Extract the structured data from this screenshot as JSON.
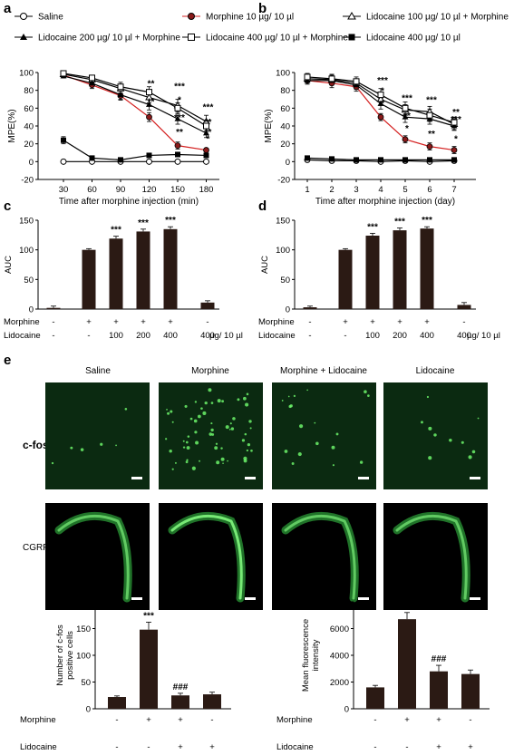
{
  "legend": {
    "saline": "Saline",
    "morphine": "Morphine 10 µg/ 10 µl",
    "lido100": "Lidocaine 100 µg/ 10 µl + Morphine",
    "lido200": "Lidocaine  200 µg/ 10 µl + Morphine",
    "lido400m": "Lidocaine 400 µg/ 10 µl + Morphine",
    "lido400": "Lidocaine 400 µg/ 10 µl"
  },
  "panels": {
    "a": "a",
    "b": "b",
    "c": "c",
    "d": "d",
    "e": "e"
  },
  "row_labels": {
    "morphine": "Morphine",
    "lidocaine": "Lidocaine",
    "unit": "µg/ 10 µl",
    "cd_morphine": [
      "-",
      "+",
      "+",
      "+",
      "+",
      "-"
    ],
    "cd_lidocaine": [
      "-",
      "-",
      "100",
      "200",
      "400",
      "400"
    ],
    "e_morphine": [
      "-",
      "+",
      "+",
      "-"
    ],
    "e_lidocaine": [
      "-",
      "-",
      "+",
      "+"
    ]
  },
  "micro": {
    "columns": [
      "Saline",
      "Morphine",
      "Morphine + Lidocaine",
      "Lidocaine"
    ],
    "row1": "c-fos",
    "row2": "CGRP",
    "colors": {
      "bg": "#05140a",
      "fluor": "#3ad14a"
    }
  },
  "colors": {
    "morphine_red": "#d42020",
    "bar": "#2b1a14"
  },
  "chart_data": [
    {
      "id": "a",
      "type": "line",
      "xlabel": "Time after morphine injection (min)",
      "ylabel": "MPE(%)",
      "x": [
        30,
        60,
        90,
        120,
        150,
        180
      ],
      "ylim": [
        -20,
        100
      ],
      "yticks": [
        -20,
        0,
        20,
        40,
        60,
        80,
        100
      ],
      "series": [
        {
          "name": "Saline",
          "values": [
            0,
            0,
            0,
            0,
            0,
            0
          ],
          "err": [
            1,
            1,
            1,
            1,
            1,
            1
          ]
        },
        {
          "name": "Morphine 10 µg/ 10 µl",
          "values": [
            97,
            86,
            74,
            50,
            18,
            13
          ],
          "err": [
            3,
            4,
            5,
            5,
            4,
            2
          ]
        },
        {
          "name": "Lidocaine 100 µg/ 10 µl + Morphine",
          "values": [
            98,
            92,
            82,
            72,
            63,
            45
          ],
          "err": [
            2,
            3,
            5,
            6,
            7,
            7
          ]
        },
        {
          "name": "Lidocaine  200 µg/ 10 µl + Morphine",
          "values": [
            96,
            88,
            75,
            64,
            48,
            32
          ],
          "err": [
            2,
            3,
            5,
            6,
            6,
            5
          ]
        },
        {
          "name": "Lidocaine 400 µg/ 10 µl + Morphine",
          "values": [
            99,
            94,
            84,
            78,
            60,
            40
          ],
          "err": [
            2,
            3,
            5,
            6,
            6,
            6
          ]
        },
        {
          "name": "Lidocaine 400 µg/ 10 µl",
          "values": [
            24,
            4,
            2,
            7,
            8,
            7
          ],
          "err": [
            4,
            2,
            2,
            2,
            2,
            2
          ]
        }
      ],
      "annotations": [
        {
          "x": 120,
          "y": 84,
          "text": "**"
        },
        {
          "x": 120,
          "y": 64,
          "text": "**"
        },
        {
          "x": 150,
          "y": 81,
          "text": "***"
        },
        {
          "x": 150,
          "y": 66,
          "text": "*"
        },
        {
          "x": 150,
          "y": 46,
          "text": "***"
        },
        {
          "x": 150,
          "y": 30,
          "text": "**"
        },
        {
          "x": 180,
          "y": 58,
          "text": "***"
        },
        {
          "x": 180,
          "y": 41,
          "text": "**"
        },
        {
          "x": 180,
          "y": 30,
          "text": "**"
        },
        {
          "x": 180,
          "y": 22,
          "text": "*"
        }
      ]
    },
    {
      "id": "b",
      "type": "line",
      "xlabel": "Time after morphine injection (day)",
      "ylabel": "MPE(%)",
      "x": [
        1,
        2,
        3,
        4,
        5,
        6,
        7
      ],
      "ylim": [
        -20,
        100
      ],
      "yticks": [
        -20,
        0,
        20,
        40,
        60,
        80,
        100
      ],
      "series": [
        {
          "name": "Saline",
          "values": [
            2,
            1,
            1,
            0,
            1,
            0,
            1
          ],
          "err": [
            1,
            1,
            1,
            1,
            1,
            1,
            1
          ]
        },
        {
          "name": "Morphine 10 µg/ 10 µl",
          "values": [
            91,
            88,
            84,
            50,
            25,
            17,
            13
          ],
          "err": [
            4,
            5,
            5,
            4,
            4,
            4,
            4
          ]
        },
        {
          "name": "Lidocaine 100 µg/ 10 µl + Morphine",
          "values": [
            93,
            92,
            88,
            70,
            58,
            56,
            42
          ],
          "err": [
            4,
            5,
            5,
            7,
            6,
            6,
            6
          ]
        },
        {
          "name": "Lidocaine  200 µg/ 10 µl + Morphine",
          "values": [
            91,
            91,
            86,
            65,
            50,
            48,
            40
          ],
          "err": [
            4,
            5,
            5,
            6,
            6,
            6,
            5
          ]
        },
        {
          "name": "Lidocaine 400 µg/ 10 µl + Morphine",
          "values": [
            95,
            93,
            90,
            75,
            60,
            52,
            44
          ],
          "err": [
            4,
            5,
            5,
            7,
            7,
            7,
            6
          ]
        },
        {
          "name": "Lidocaine 400 µg/ 10 µl",
          "values": [
            4,
            3,
            2,
            2,
            2,
            2,
            2
          ],
          "err": [
            2,
            2,
            2,
            2,
            2,
            2,
            2
          ]
        }
      ],
      "annotations": [
        {
          "x": 4,
          "y": 88,
          "text": "***"
        },
        {
          "x": 4,
          "y": 76,
          "text": "*"
        },
        {
          "x": 4,
          "y": 62,
          "text": "*"
        },
        {
          "x": 5,
          "y": 68,
          "text": "***"
        },
        {
          "x": 5,
          "y": 48,
          "text": "**"
        },
        {
          "x": 5,
          "y": 34,
          "text": "*"
        },
        {
          "x": 6,
          "y": 66,
          "text": "***"
        },
        {
          "x": 6,
          "y": 28,
          "text": "**"
        },
        {
          "x": 7,
          "y": 52,
          "text": "**"
        },
        {
          "x": 7,
          "y": 44,
          "text": "***"
        },
        {
          "x": 7,
          "y": 22,
          "text": "*"
        }
      ]
    },
    {
      "id": "c",
      "type": "bar",
      "ylabel": "AUC",
      "ylim": [
        0,
        150
      ],
      "yticks": [
        0,
        50,
        100,
        150
      ],
      "values": [
        2,
        100,
        119,
        131,
        135,
        11
      ],
      "err": [
        3,
        2,
        4,
        4,
        4,
        3
      ],
      "sig": [
        "",
        "",
        "***",
        "***",
        "***",
        ""
      ]
    },
    {
      "id": "d",
      "type": "bar",
      "ylabel": "AUC",
      "ylim": [
        0,
        150
      ],
      "yticks": [
        0,
        50,
        100,
        150
      ],
      "values": [
        3,
        100,
        124,
        133,
        136,
        7
      ],
      "err": [
        2,
        2,
        4,
        4,
        3,
        4
      ],
      "sig": [
        "",
        "",
        "***",
        "***",
        "***",
        ""
      ]
    },
    {
      "id": "e1",
      "type": "bar",
      "title": "c-fos",
      "ylabel": "Number of c-fos positive cells",
      "ylim": [
        0,
        200
      ],
      "yticks": [
        0,
        50,
        100,
        150,
        200
      ],
      "values": [
        22,
        148,
        25,
        27
      ],
      "err": [
        2,
        14,
        4,
        4
      ],
      "sig": [
        "",
        "***",
        "###",
        ""
      ]
    },
    {
      "id": "e2",
      "type": "bar",
      "title": "CGRP",
      "ylabel": "Mean fluorescence intensity",
      "ylim": [
        0,
        8000
      ],
      "yticks": [
        0,
        2000,
        4000,
        6000,
        8000
      ],
      "values": [
        1600,
        6700,
        2800,
        2600
      ],
      "err": [
        150,
        500,
        450,
        300
      ],
      "sig": [
        "",
        "***",
        "###",
        ""
      ]
    }
  ]
}
